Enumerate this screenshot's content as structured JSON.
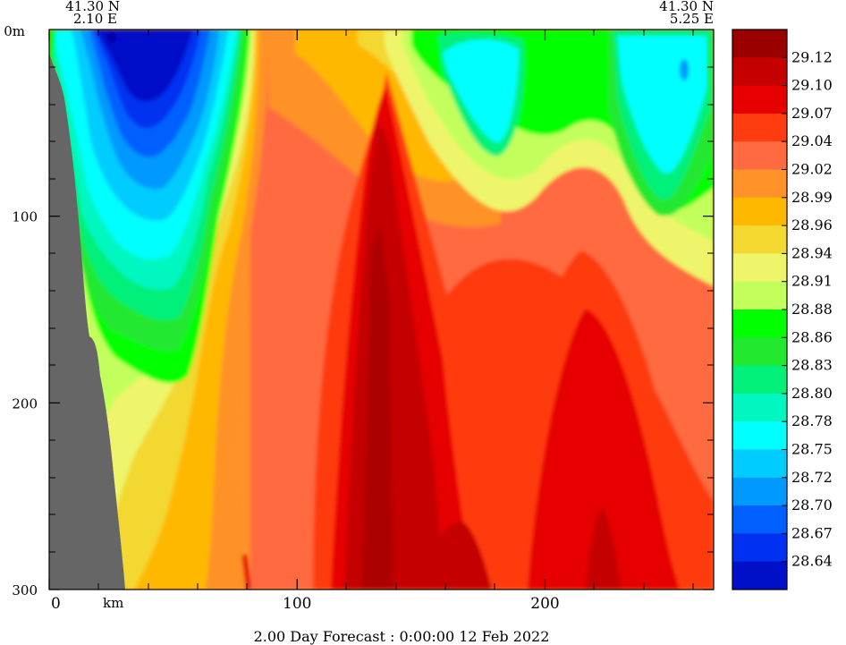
{
  "chart_data": {
    "type": "heatmap",
    "title": "",
    "corner_labels": {
      "left_lat": "41.30 N",
      "left_lon": "2.10 E",
      "right_lat": "41.30 N",
      "right_lon": "5.25 E"
    },
    "x_axis": {
      "label": "",
      "unit_label": "km",
      "range": [
        0,
        268
      ],
      "ticks": [
        0,
        100,
        200
      ]
    },
    "y_axis": {
      "label": "",
      "top_label": "0m",
      "range": [
        0,
        300
      ],
      "ticks": [
        100,
        200,
        300
      ],
      "inverted": true
    },
    "footer": "2.00 Day Forecast :  0:00:00  12 Feb 2022",
    "colorbar": {
      "colors": [
        "#9a0000",
        "#c40000",
        "#e60000",
        "#ff3b10",
        "#ff6a40",
        "#ff9228",
        "#ffb800",
        "#f3d830",
        "#eef56a",
        "#c3ff5b",
        "#00ff00",
        "#22e830",
        "#00f07a",
        "#00f8c0",
        "#00ffff",
        "#00ccff",
        "#0099ff",
        "#0060ff",
        "#0030f0",
        "#0010c8"
      ],
      "labels": [
        "29.12",
        "29.10",
        "29.07",
        "29.04",
        "29.02",
        "28.99",
        "28.96",
        "28.94",
        "28.91",
        "28.88",
        "28.86",
        "28.83",
        "28.80",
        "28.78",
        "28.75",
        "28.72",
        "28.70",
        "28.67",
        "28.64"
      ]
    }
  }
}
